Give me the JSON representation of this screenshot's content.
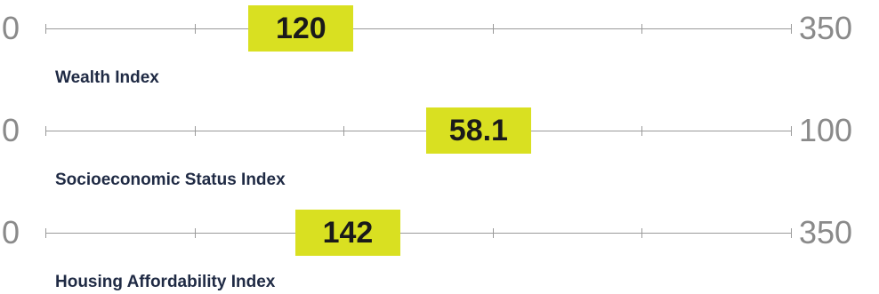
{
  "chart_data": [
    {
      "type": "bullet-gauge",
      "title": "Wealth Index",
      "min": 0,
      "max": 350,
      "value": 120,
      "value_label": "120",
      "min_label": "0",
      "max_label": "350",
      "tick_count": 5
    },
    {
      "type": "bullet-gauge",
      "title": "Socioeconomic Status Index",
      "min": 0,
      "max": 100,
      "value": 58.1,
      "value_label": "58.1",
      "min_label": "0",
      "max_label": "100",
      "tick_count": 5
    },
    {
      "type": "bullet-gauge",
      "title": "Housing Affordability Index",
      "min": 0,
      "max": 350,
      "value": 142,
      "value_label": "142",
      "min_label": "0",
      "max_label": "350",
      "tick_count": 5
    }
  ],
  "colors": {
    "marker": "#d9e021",
    "marker_text": "#1a1a1a",
    "track": "#9a9a9a",
    "range_label": "#8a8a8a",
    "index_label": "#1f2a44"
  }
}
